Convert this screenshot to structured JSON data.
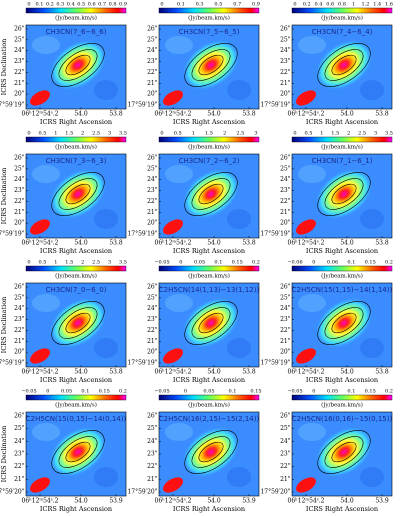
{
  "common": {
    "unit": "(Jy/beam.km/s)",
    "ylabel": "ICRS Declination",
    "xlabel": "ICRS Right Ascension"
  },
  "panels": [
    {
      "label": "CH3CN(7_6−6_6)",
      "cbar_ticks": [
        "0",
        "0.1",
        "0.2",
        "0.3",
        "0.4",
        "0.5",
        "0.6",
        "0.7",
        "0.8",
        "0.9"
      ],
      "yticks": [
        "26\"",
        "25\"",
        "24\"",
        "23\"",
        "22\"",
        "21\"",
        "20\"",
        "17°59′19\""
      ],
      "xticks": [
        "06ʰ12ᵐ54ˢ.2",
        "54.0",
        "53.8"
      ]
    },
    {
      "label": "CH3CN(7_5−6_5)",
      "cbar_ticks": [
        "0",
        "0.1",
        "0.3",
        "0.5",
        "0.7",
        "0.9"
      ],
      "yticks": [
        "26\"",
        "25\"",
        "24\"",
        "23\"",
        "22\"",
        "21\"",
        "20\"",
        "17°59′19\""
      ],
      "xticks": [
        "06ʰ12ᵐ54ˢ.2",
        "54.0",
        "53.8"
      ]
    },
    {
      "label": "CH3CN(7_4−6_4)",
      "cbar_ticks": [
        "0",
        "0.2",
        "0.4",
        "0.6",
        "0.8",
        "1",
        "1.2",
        "1.4",
        "1.6"
      ],
      "yticks": [
        "26\"",
        "25\"",
        "24\"",
        "23\"",
        "22\"",
        "21\"",
        "20\"",
        "17°59′19\""
      ],
      "xticks": [
        "06ʰ12ᵐ54ˢ.2",
        "54.0",
        "53.8"
      ]
    },
    {
      "label": "CH3CN(7_3−6_3)",
      "cbar_ticks": [
        "0",
        "0.5",
        "1",
        "1.5",
        "2",
        "2.5",
        "3",
        "3.5"
      ],
      "yticks": [
        "26\"",
        "25\"",
        "24\"",
        "23\"",
        "22\"",
        "21\"",
        "20\"",
        "17°59′19\""
      ],
      "xticks": [
        "06ʰ12ᵐ54ˢ.2",
        "54.0",
        "53.8"
      ]
    },
    {
      "label": "CH3CN(7_2−6_2)",
      "cbar_ticks": [
        "0",
        "0.5",
        "1",
        "1.5",
        "2",
        "2.5",
        "3"
      ],
      "yticks": [
        "26\"",
        "25\"",
        "24\"",
        "23\"",
        "22\"",
        "21\"",
        "20\"",
        "17°59′19\""
      ],
      "xticks": [
        "06ʰ12ᵐ54ˢ.2",
        "54.0",
        "53.8"
      ]
    },
    {
      "label": "CH3CN(7_1−6_1)",
      "cbar_ticks": [
        "0",
        "0.5",
        "1",
        "1.5",
        "2",
        "2.5",
        "3",
        "3.5"
      ],
      "yticks": [
        "26\"",
        "25\"",
        "24\"",
        "23\"",
        "22\"",
        "21\"",
        "20\"",
        "17°59′19\""
      ],
      "xticks": [
        "06ʰ12ᵐ54ˢ.2",
        "54.0",
        "53.8"
      ]
    },
    {
      "label": "CH3CN(7_0−6_0)",
      "cbar_ticks": [
        "0",
        "0.5",
        "1",
        "1.5",
        "2",
        "2.5",
        "3",
        "3.5"
      ],
      "yticks": [
        "26\"",
        "25\"",
        "24\"",
        "23\"",
        "22\"",
        "21\"",
        "20\"",
        "17°59′19\""
      ],
      "xticks": [
        "06ʰ12ᵐ54ˢ.2",
        "54.0",
        "53.8"
      ]
    },
    {
      "label": "C2H5CN(14(1,13)−13(1,12))",
      "cbar_ticks": [
        "−0.05",
        "0",
        "0.05",
        "0.1",
        "0.15",
        "0.2"
      ],
      "yticks": [
        "26\"",
        "25\"",
        "24\"",
        "23\"",
        "22\"",
        "21\"",
        "20\"",
        "17°59′19\""
      ],
      "xticks": [
        "06ʰ12ᵐ54ˢ.2",
        "54.0",
        "53.8"
      ]
    },
    {
      "label": "C2H5CN(15(1,15)−14(1,14))",
      "cbar_ticks": [
        "−0.06",
        "0",
        "0.06",
        "0.1",
        "0.15",
        "0.2"
      ],
      "yticks": [
        "26\"",
        "25\"",
        "24\"",
        "23\"",
        "22\"",
        "21\"",
        "20\"",
        "17°59′19\""
      ],
      "xticks": [
        "06ʰ12ᵐ54ˢ.2",
        "54.0",
        "53.8"
      ]
    },
    {
      "label": "C2H5CN(15(0,15)−14(0,14))",
      "cbar_ticks": [
        "−0.05",
        "0",
        "0.05",
        "0.1",
        "0.15",
        "0.2"
      ],
      "yticks": [
        "26\"",
        "25\"",
        "24\"",
        "23\"",
        "22\"",
        "21\"",
        "17°59′20\""
      ],
      "xticks": [
        "06ʰ12ᵐ54ˢ.2",
        "54.0",
        "53.9"
      ]
    },
    {
      "label": "C2H5CN(16(2,15)−15(2,14))",
      "cbar_ticks": [
        "−0.05",
        "0",
        "0.05",
        "0.1",
        "0.15"
      ],
      "yticks": [
        "26\"",
        "25\"",
        "24\"",
        "23\"",
        "22\"",
        "21\"",
        "17°59′20\""
      ],
      "xticks": [
        "06ʰ12ᵐ54ˢ.2",
        "54.0",
        "53.9"
      ]
    },
    {
      "label": "C2H5CN(16(0,16)−15(0,15))",
      "cbar_ticks": [
        "−0.05",
        "0",
        "0.05",
        "0.1",
        "0.15",
        "0.2"
      ],
      "yticks": [
        "26\"",
        "25\"",
        "24\"",
        "23\"",
        "22\"",
        "21\"",
        "17°59′20\""
      ],
      "xticks": [
        "06ʰ12ᵐ54ˢ.2",
        "54.0",
        "53.9"
      ]
    }
  ]
}
